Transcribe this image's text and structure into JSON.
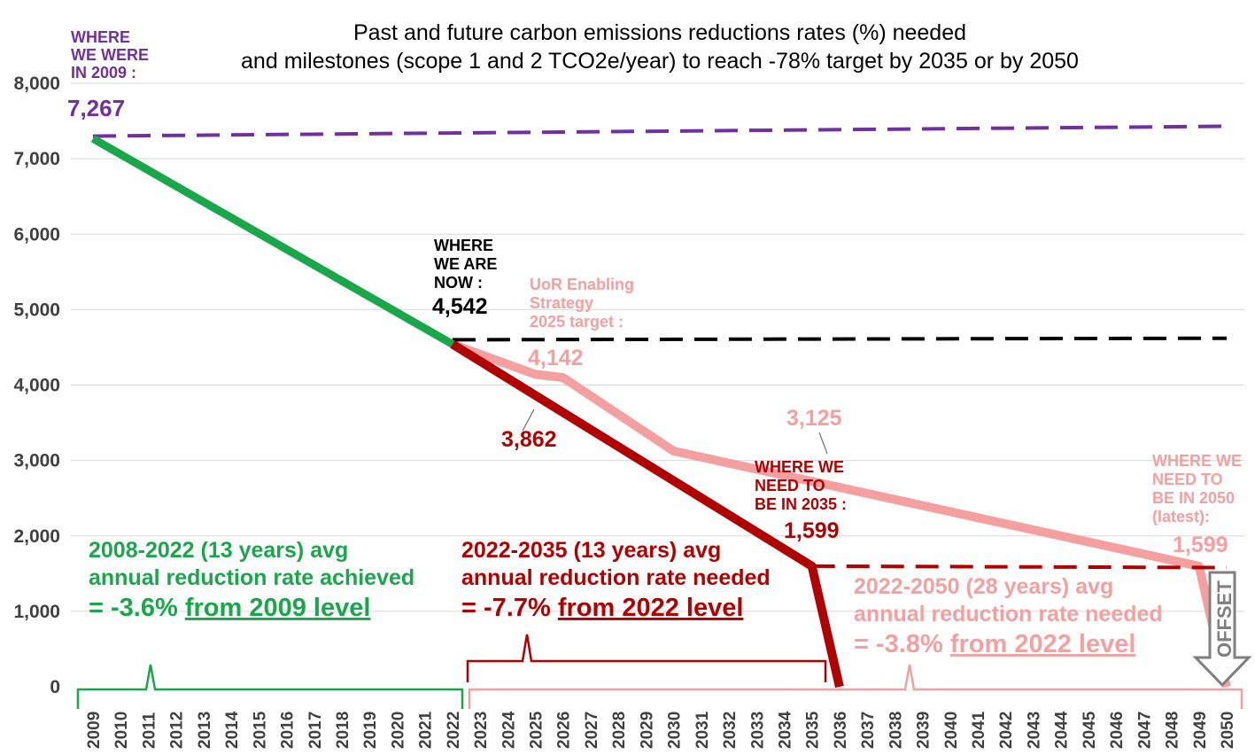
{
  "chart_data": {
    "type": "line",
    "title": "Past and future carbon emissions reductions rates (%) needed",
    "subtitle": "and milestones (scope 1 and 2 TCO2e/year) to reach -78% target by 2035 or by 2050",
    "ylim": [
      0,
      8000
    ],
    "y_ticks": [
      "0",
      "1,000",
      "2,000",
      "3,000",
      "4,000",
      "5,000",
      "6,000",
      "7,000",
      "8,000"
    ],
    "x_ticks": [
      "2009",
      "2010",
      "2011",
      "2012",
      "2013",
      "2014",
      "2015",
      "2016",
      "2017",
      "2018",
      "2019",
      "2020",
      "2021",
      "2022",
      "2023",
      "2024",
      "2025",
      "2026",
      "2027",
      "2028",
      "2029",
      "2030",
      "2031",
      "2032",
      "2033",
      "2034",
      "2035",
      "2036",
      "2037",
      "2038",
      "2039",
      "2040",
      "2041",
      "2042",
      "2043",
      "2044",
      "2045",
      "2046",
      "2047",
      "2048",
      "2049",
      "2050"
    ],
    "grid": true,
    "series": [
      {
        "name": "achieved",
        "color": "#1aa64a",
        "style": "solid",
        "points": [
          [
            2009,
            7267
          ],
          [
            2022,
            4542
          ]
        ]
      },
      {
        "name": "needed-2035",
        "color": "#b00000",
        "style": "solid",
        "points": [
          [
            2022,
            4542
          ],
          [
            2035,
            1599
          ],
          [
            2036,
            0
          ]
        ]
      },
      {
        "name": "needed-2050",
        "color": "#f4a0a0",
        "style": "solid",
        "points": [
          [
            2022,
            4542
          ],
          [
            2025,
            4142
          ],
          [
            2026,
            4100
          ],
          [
            2030,
            3125
          ],
          [
            2049,
            1599
          ],
          [
            2050,
            0
          ]
        ]
      },
      {
        "name": "2009-level",
        "color": "#7030a0",
        "style": "dashed",
        "points": [
          [
            2009,
            7300
          ],
          [
            2050,
            7430
          ]
        ]
      },
      {
        "name": "2022-level",
        "color": "#000000",
        "style": "dashed",
        "points": [
          [
            2022,
            4600
          ],
          [
            2050,
            4620
          ]
        ]
      },
      {
        "name": "2035-target-level",
        "color": "#b00000",
        "style": "dashed",
        "points": [
          [
            2035,
            1599
          ],
          [
            2050,
            1580
          ]
        ]
      }
    ],
    "labels": {
      "where_we_were": [
        "WHERE",
        "WE WERE",
        "IN 2009 :"
      ],
      "value_2009": "7,267",
      "where_we_are": [
        "WHERE",
        "WE ARE",
        "NOW :"
      ],
      "value_now": "4,542",
      "uor": [
        "UoR Enabling",
        "Strategy",
        "2025 target :"
      ],
      "value_2025": "4,142",
      "value_3862": "3,862",
      "value_3125": "3,125",
      "where_2035": [
        "WHERE WE",
        "NEED TO",
        "BE IN 2035 :"
      ],
      "value_2035": "1,599",
      "where_2050": [
        "WHERE WE",
        "NEED TO",
        "BE IN 2050",
        "(latest):"
      ],
      "value_2050": "1,599",
      "offset": "OFFSET"
    },
    "annotations": {
      "green": {
        "line1": "2008-2022 (13 years) avg",
        "line2": "annual reduction rate achieved",
        "line3_plain": "= -3.6% ",
        "line3_underlined": "from 2009 level"
      },
      "red": {
        "line1": "2022-2035 (13 years) avg",
        "line2": "annual reduction rate needed",
        "line3_plain": "= -7.7% ",
        "line3_underlined": "from 2022 level"
      },
      "pink": {
        "line1": "2022-2050 (28 years) avg",
        "line2": "annual reduction rate needed",
        "line3_plain": "= -3.8% ",
        "line3_underlined": "from 2022 level"
      }
    },
    "colors": {
      "green": "#1aa64a",
      "red": "#b00000",
      "pink": "#f4a0a0",
      "purple": "#7030a0",
      "black": "#000000",
      "grid": "#d9d9d9",
      "axis_text": "#404040"
    }
  }
}
